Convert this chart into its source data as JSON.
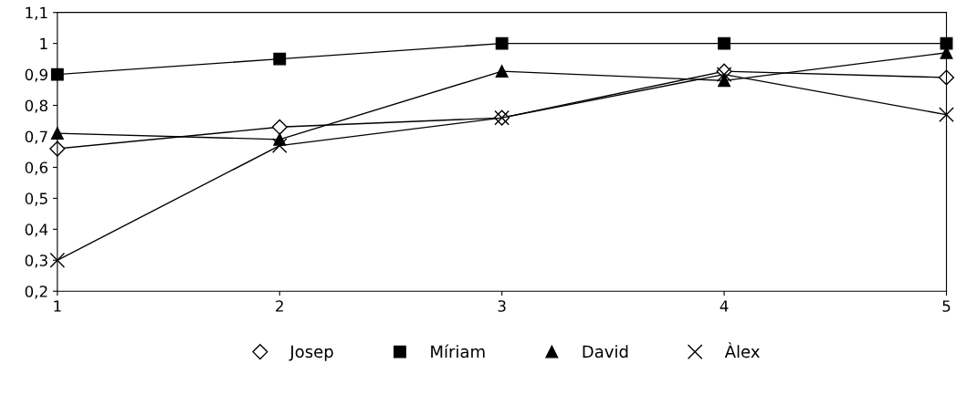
{
  "chart_data": {
    "type": "line",
    "x": [
      1,
      2,
      3,
      4,
      5
    ],
    "series": [
      {
        "name": "Josep",
        "color": "#000000",
        "marker": "diamond",
        "values": [
          0.66,
          0.73,
          0.76,
          0.91,
          0.89
        ]
      },
      {
        "name": "Míriam",
        "color": "#000000",
        "marker": "square",
        "values": [
          0.9,
          0.95,
          1.0,
          1.0,
          1.0
        ]
      },
      {
        "name": "David",
        "color": "#000000",
        "marker": "triangle",
        "values": [
          0.71,
          0.69,
          0.91,
          0.88,
          0.97
        ]
      },
      {
        "name": "Àlex",
        "color": "#000000",
        "marker": "cross",
        "values": [
          0.3,
          0.67,
          0.76,
          0.9,
          0.77
        ]
      }
    ],
    "xlim": [
      1,
      5
    ],
    "xticks": [
      1,
      2,
      3,
      4,
      5
    ],
    "ylim": [
      0.2,
      1.1
    ],
    "yticks": [
      {
        "value": 0.2,
        "label": "0,2"
      },
      {
        "value": 0.3,
        "label": "0,3"
      },
      {
        "value": 0.4,
        "label": "0,4"
      },
      {
        "value": 0.5,
        "label": "0,5"
      },
      {
        "value": 0.6,
        "label": "0,6"
      },
      {
        "value": 0.7,
        "label": "0,7"
      },
      {
        "value": 0.8,
        "label": "0,8"
      },
      {
        "value": 0.9,
        "label": "0,9"
      },
      1,
      {
        "value": 1.1,
        "label": "1,1"
      }
    ],
    "legend": "bottom",
    "grid": false,
    "line_style": "solid"
  }
}
